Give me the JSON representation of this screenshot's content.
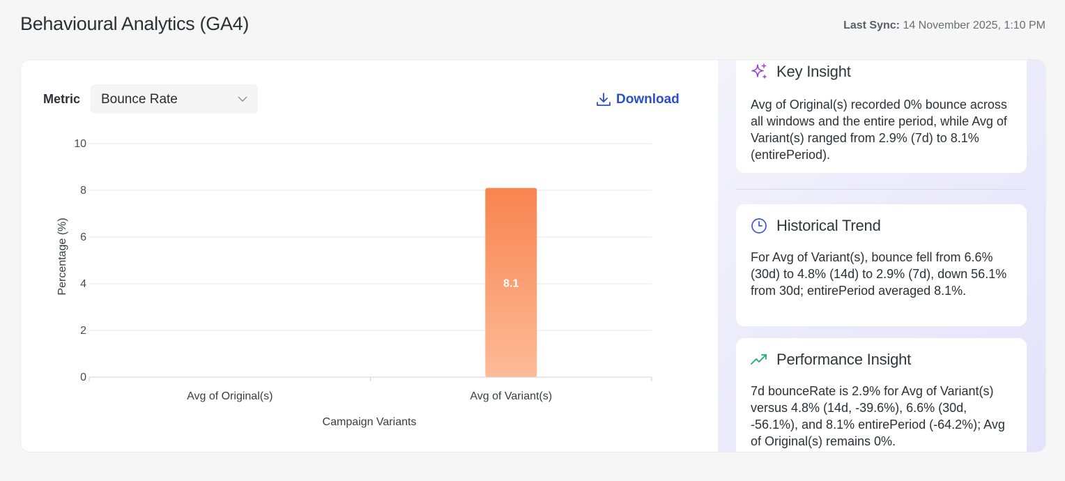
{
  "header": {
    "title": "Behavioural Analytics (GA4)",
    "last_sync_label": "Last Sync:",
    "last_sync_value": "14 November 2025, 1:10 PM"
  },
  "controls": {
    "metric_label": "Metric",
    "metric_selected": "Bounce Rate",
    "download_label": "Download"
  },
  "chart_data": {
    "type": "bar",
    "categories": [
      "Avg of Original(s)",
      "Avg of Variant(s)"
    ],
    "values": [
      0,
      8.1
    ],
    "data_labels": [
      "",
      "8.1"
    ],
    "xlabel": "Campaign Variants",
    "ylabel": "Percentage (%)",
    "ylim": [
      0,
      10
    ],
    "yticks": [
      "0",
      "2",
      "4",
      "6",
      "8",
      "10"
    ],
    "grid": true,
    "bar_color_top": "#f8844f",
    "bar_color_bottom": "#fdbb98"
  },
  "insights": [
    {
      "icon": "sparkle-icon",
      "title": "Key Insight",
      "body": "Avg of Original(s) recorded 0% bounce across all windows and the entire period, while Avg of Variant(s) ranged from 2.9% (7d) to 8.1% (entirePeriod)."
    },
    {
      "icon": "clock-icon",
      "title": "Historical Trend",
      "body": "For Avg of Variant(s), bounce fell from 6.6% (30d) to 4.8% (14d) to 2.9% (7d), down 56.1% from 30d; entirePeriod averaged 8.1%."
    },
    {
      "icon": "trending-up-icon",
      "title": "Performance Insight",
      "body": "7d bounceRate is 2.9% for Avg of Variant(s) versus 4.8% (14d, -39.6%), 6.6% (30d, -56.1%), and 8.1% entirePeriod (-64.2%); Avg of Original(s) remains 0%."
    }
  ],
  "colors": {
    "accent": "#2d4fc6",
    "sparkle": "#9b3fd6",
    "clock": "#3f55d6",
    "trend": "#23a67a"
  }
}
